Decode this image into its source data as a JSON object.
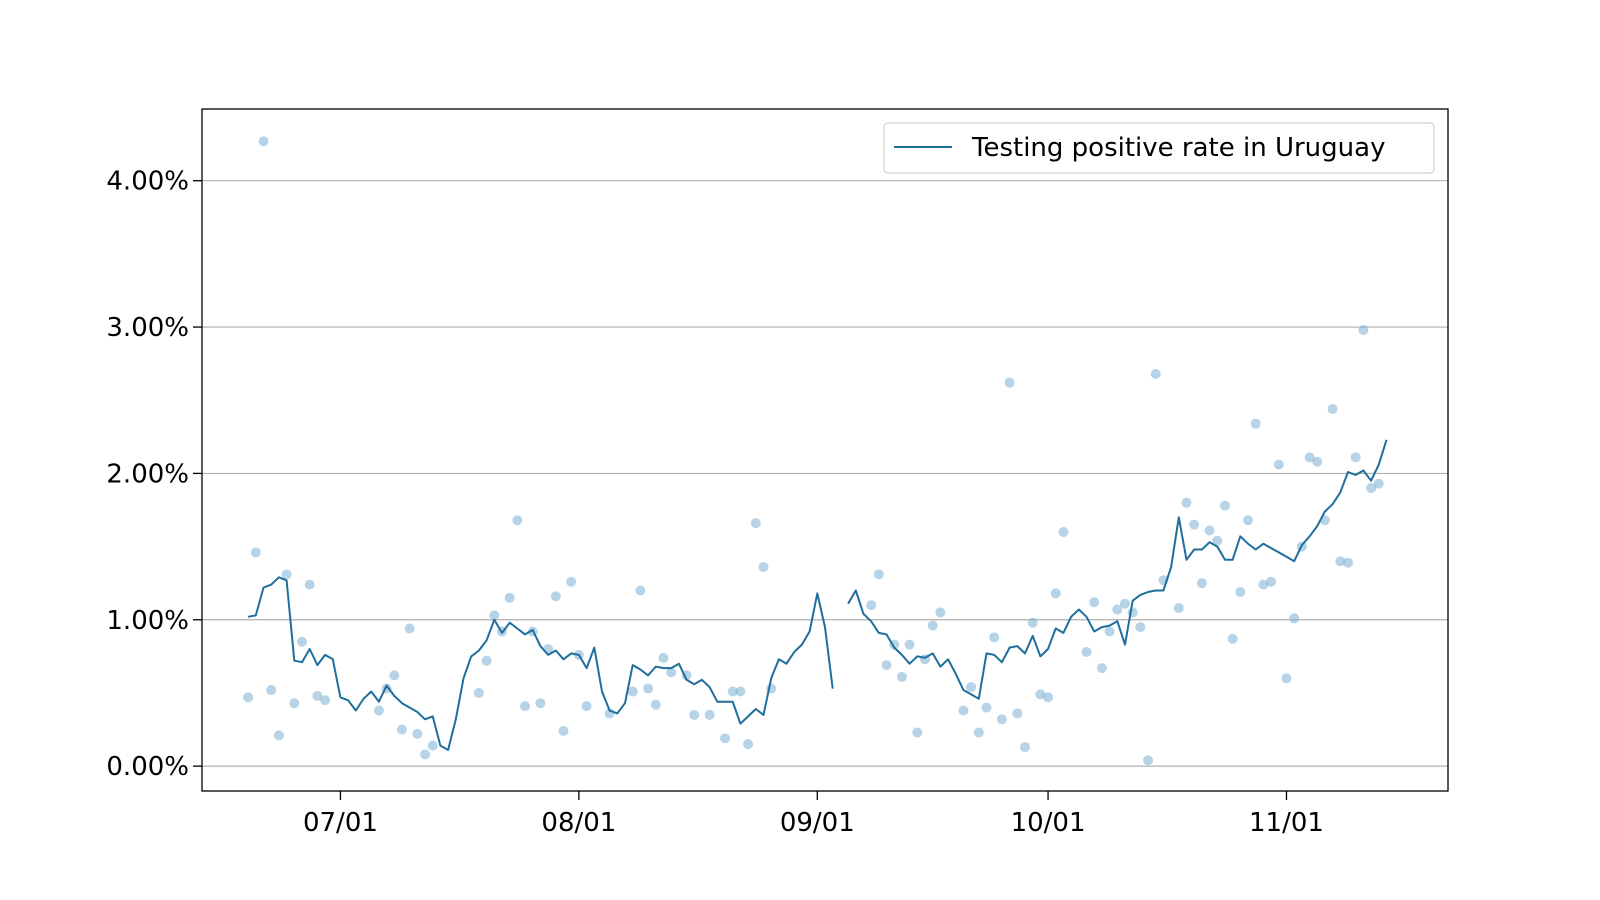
{
  "chart_data": {
    "type": "line",
    "title": "",
    "xlabel": "",
    "ylabel": "",
    "x_axis": {
      "type": "date",
      "range": [
        "2020-06-13",
        "2020-11-22"
      ],
      "ticks": [
        {
          "date": "2020-07-01",
          "label": "07/01"
        },
        {
          "date": "2020-08-01",
          "label": "08/01"
        },
        {
          "date": "2020-09-01",
          "label": "09/01"
        },
        {
          "date": "2020-10-01",
          "label": "10/01"
        },
        {
          "date": "2020-11-01",
          "label": "11/01"
        }
      ]
    },
    "y_axis": {
      "range": [
        -0.0017,
        0.0449
      ],
      "format": "percent",
      "grid": true,
      "ticks": [
        {
          "value": 0.0,
          "label": "0.00%"
        },
        {
          "value": 0.01,
          "label": "1.00%"
        },
        {
          "value": 0.02,
          "label": "2.00%"
        },
        {
          "value": 0.03,
          "label": "3.00%"
        },
        {
          "value": 0.04,
          "label": "4.00%"
        }
      ]
    },
    "legend": {
      "position": "top-right"
    },
    "colors": {
      "line": "#1f6e9c",
      "points": "#7aaed3",
      "grid": "#b0b0b0",
      "axis": "#000000"
    },
    "series": [
      {
        "name": "Testing positive rate in Uruguay",
        "kind": "line",
        "points": [
          [
            "2020-06-19",
            0.0102
          ],
          [
            "2020-06-20",
            0.0103
          ],
          [
            "2020-06-21",
            0.0122
          ],
          [
            "2020-06-22",
            0.0124
          ],
          [
            "2020-06-23",
            0.0129
          ],
          [
            "2020-06-24",
            0.0127
          ],
          [
            "2020-06-25",
            0.0072
          ],
          [
            "2020-06-26",
            0.0071
          ],
          [
            "2020-06-27",
            0.008
          ],
          [
            "2020-06-28",
            0.0069
          ],
          [
            "2020-06-29",
            0.0076
          ],
          [
            "2020-06-30",
            0.0073
          ],
          [
            "2020-07-01",
            0.0047
          ],
          [
            "2020-07-02",
            0.0045
          ],
          [
            "2020-07-03",
            0.0038
          ],
          [
            "2020-07-04",
            0.0046
          ],
          [
            "2020-07-05",
            0.0051
          ],
          [
            "2020-07-06",
            0.0044
          ],
          [
            "2020-07-07",
            0.0055
          ],
          [
            "2020-07-08",
            0.0048
          ],
          [
            "2020-07-09",
            0.0043
          ],
          [
            "2020-07-10",
            0.004
          ],
          [
            "2020-07-11",
            0.0037
          ],
          [
            "2020-07-12",
            0.0032
          ],
          [
            "2020-07-13",
            0.0034
          ],
          [
            "2020-07-14",
            0.0014
          ],
          [
            "2020-07-15",
            0.0011
          ],
          [
            "2020-07-16",
            0.0032
          ],
          [
            "2020-07-17",
            0.006
          ],
          [
            "2020-07-18",
            0.0075
          ],
          [
            "2020-07-19",
            0.0079
          ],
          [
            "2020-07-20",
            0.0086
          ],
          [
            "2020-07-21",
            0.01
          ],
          [
            "2020-07-22",
            0.0091
          ],
          [
            "2020-07-23",
            0.0098
          ],
          [
            "2020-07-24",
            0.0094
          ],
          [
            "2020-07-25",
            0.009
          ],
          [
            "2020-07-26",
            0.0093
          ],
          [
            "2020-07-27",
            0.0082
          ],
          [
            "2020-07-28",
            0.0076
          ],
          [
            "2020-07-29",
            0.0079
          ],
          [
            "2020-07-30",
            0.0073
          ],
          [
            "2020-07-31",
            0.0077
          ],
          [
            "2020-08-01",
            0.0076
          ],
          [
            "2020-08-02",
            0.0067
          ],
          [
            "2020-08-03",
            0.0081
          ],
          [
            "2020-08-04",
            0.0051
          ],
          [
            "2020-08-05",
            0.0038
          ],
          [
            "2020-08-06",
            0.0036
          ],
          [
            "2020-08-07",
            0.0043
          ],
          [
            "2020-08-08",
            0.0069
          ],
          [
            "2020-08-09",
            0.0066
          ],
          [
            "2020-08-10",
            0.0062
          ],
          [
            "2020-08-11",
            0.0068
          ],
          [
            "2020-08-12",
            0.0067
          ],
          [
            "2020-08-13",
            0.0067
          ],
          [
            "2020-08-14",
            0.007
          ],
          [
            "2020-08-15",
            0.0059
          ],
          [
            "2020-08-16",
            0.0056
          ],
          [
            "2020-08-17",
            0.0059
          ],
          [
            "2020-08-18",
            0.0054
          ],
          [
            "2020-08-19",
            0.0044
          ],
          [
            "2020-08-20",
            0.0044
          ],
          [
            "2020-08-21",
            0.0044
          ],
          [
            "2020-08-22",
            0.0029
          ],
          [
            "2020-08-23",
            0.0034
          ],
          [
            "2020-08-24",
            0.0039
          ],
          [
            "2020-08-25",
            0.0035
          ],
          [
            "2020-08-26",
            0.006
          ],
          [
            "2020-08-27",
            0.0073
          ],
          [
            "2020-08-28",
            0.007
          ],
          [
            "2020-08-29",
            0.0078
          ],
          [
            "2020-08-30",
            0.0083
          ],
          [
            "2020-08-31",
            0.0092
          ],
          [
            "2020-09-01",
            0.0118
          ],
          [
            "2020-09-02",
            0.0095
          ],
          [
            "2020-09-03",
            0.0053
          ],
          [
            "2020-09-04",
            null
          ],
          [
            "2020-09-05",
            0.0111
          ],
          [
            "2020-09-06",
            0.012
          ],
          [
            "2020-09-07",
            0.0104
          ],
          [
            "2020-09-08",
            0.0099
          ],
          [
            "2020-09-09",
            0.0091
          ],
          [
            "2020-09-10",
            0.009
          ],
          [
            "2020-09-11",
            0.0081
          ],
          [
            "2020-09-12",
            0.0076
          ],
          [
            "2020-09-13",
            0.007
          ],
          [
            "2020-09-14",
            0.0075
          ],
          [
            "2020-09-15",
            0.0074
          ],
          [
            "2020-09-16",
            0.0077
          ],
          [
            "2020-09-17",
            0.0068
          ],
          [
            "2020-09-18",
            0.0073
          ],
          [
            "2020-09-19",
            0.0063
          ],
          [
            "2020-09-20",
            0.0052
          ],
          [
            "2020-09-21",
            0.0049
          ],
          [
            "2020-09-22",
            0.0046
          ],
          [
            "2020-09-23",
            0.0077
          ],
          [
            "2020-09-24",
            0.0076
          ],
          [
            "2020-09-25",
            0.0071
          ],
          [
            "2020-09-26",
            0.0081
          ],
          [
            "2020-09-27",
            0.0082
          ],
          [
            "2020-09-28",
            0.0077
          ],
          [
            "2020-09-29",
            0.0089
          ],
          [
            "2020-09-30",
            0.0075
          ],
          [
            "2020-10-01",
            0.008
          ],
          [
            "2020-10-02",
            0.0094
          ],
          [
            "2020-10-03",
            0.0091
          ],
          [
            "2020-10-04",
            0.0102
          ],
          [
            "2020-10-05",
            0.0107
          ],
          [
            "2020-10-06",
            0.0102
          ],
          [
            "2020-10-07",
            0.0092
          ],
          [
            "2020-10-08",
            0.0095
          ],
          [
            "2020-10-09",
            0.0096
          ],
          [
            "2020-10-10",
            0.0099
          ],
          [
            "2020-10-11",
            0.0083
          ],
          [
            "2020-10-12",
            0.0113
          ],
          [
            "2020-10-13",
            0.0117
          ],
          [
            "2020-10-14",
            0.0119
          ],
          [
            "2020-10-15",
            0.012
          ],
          [
            "2020-10-16",
            0.012
          ],
          [
            "2020-10-17",
            0.0136
          ],
          [
            "2020-10-18",
            0.017
          ],
          [
            "2020-10-19",
            0.0141
          ],
          [
            "2020-10-20",
            0.0148
          ],
          [
            "2020-10-21",
            0.0148
          ],
          [
            "2020-10-22",
            0.0153
          ],
          [
            "2020-10-23",
            0.015
          ],
          [
            "2020-10-24",
            0.0141
          ],
          [
            "2020-10-25",
            0.0141
          ],
          [
            "2020-10-26",
            0.0157
          ],
          [
            "2020-10-27",
            0.0152
          ],
          [
            "2020-10-28",
            0.0148
          ],
          [
            "2020-10-29",
            0.0152
          ],
          [
            "2020-10-30",
            0.0149
          ],
          [
            "2020-10-31",
            0.0146
          ],
          [
            "2020-11-01",
            0.0143
          ],
          [
            "2020-11-02",
            0.014
          ],
          [
            "2020-11-03",
            0.0151
          ],
          [
            "2020-11-04",
            0.0157
          ],
          [
            "2020-11-05",
            0.0164
          ],
          [
            "2020-11-06",
            0.0174
          ],
          [
            "2020-11-07",
            0.0179
          ],
          [
            "2020-11-08",
            0.0187
          ],
          [
            "2020-11-09",
            0.0201
          ],
          [
            "2020-11-10",
            0.0199
          ],
          [
            "2020-11-11",
            0.0202
          ],
          [
            "2020-11-12",
            0.0195
          ],
          [
            "2020-11-13",
            0.0206
          ],
          [
            "2020-11-14",
            0.0223
          ]
        ]
      },
      {
        "kind": "scatter",
        "points": [
          [
            "2020-06-19",
            0.0047
          ],
          [
            "2020-06-20",
            0.0146
          ],
          [
            "2020-06-21",
            0.0427
          ],
          [
            "2020-06-22",
            0.0052
          ],
          [
            "2020-06-23",
            0.0021
          ],
          [
            "2020-06-24",
            0.0131
          ],
          [
            "2020-06-25",
            0.0043
          ],
          [
            "2020-06-26",
            0.0085
          ],
          [
            "2020-06-27",
            0.0124
          ],
          [
            "2020-06-28",
            0.0048
          ],
          [
            "2020-06-29",
            0.0045
          ],
          [
            "2020-07-06",
            0.0038
          ],
          [
            "2020-07-07",
            0.0053
          ],
          [
            "2020-07-08",
            0.0062
          ],
          [
            "2020-07-09",
            0.0025
          ],
          [
            "2020-07-10",
            0.0094
          ],
          [
            "2020-07-11",
            0.0022
          ],
          [
            "2020-07-12",
            0.0008
          ],
          [
            "2020-07-13",
            0.0014
          ],
          [
            "2020-07-19",
            0.005
          ],
          [
            "2020-07-20",
            0.0072
          ],
          [
            "2020-07-21",
            0.0103
          ],
          [
            "2020-07-22",
            0.0092
          ],
          [
            "2020-07-23",
            0.0115
          ],
          [
            "2020-07-24",
            0.0168
          ],
          [
            "2020-07-25",
            0.0041
          ],
          [
            "2020-07-26",
            0.0092
          ],
          [
            "2020-07-27",
            0.0043
          ],
          [
            "2020-07-28",
            0.008
          ],
          [
            "2020-07-29",
            0.0116
          ],
          [
            "2020-07-30",
            0.0024
          ],
          [
            "2020-07-31",
            0.0126
          ],
          [
            "2020-08-01",
            0.0076
          ],
          [
            "2020-08-02",
            0.0041
          ],
          [
            "2020-08-05",
            0.0036
          ],
          [
            "2020-08-08",
            0.0051
          ],
          [
            "2020-08-09",
            0.012
          ],
          [
            "2020-08-10",
            0.0053
          ],
          [
            "2020-08-11",
            0.0042
          ],
          [
            "2020-08-12",
            0.0074
          ],
          [
            "2020-08-13",
            0.0064
          ],
          [
            "2020-08-15",
            0.0062
          ],
          [
            "2020-08-16",
            0.0035
          ],
          [
            "2020-08-18",
            0.0035
          ],
          [
            "2020-08-20",
            0.0019
          ],
          [
            "2020-08-21",
            0.0051
          ],
          [
            "2020-08-22",
            0.0051
          ],
          [
            "2020-08-23",
            0.0015
          ],
          [
            "2020-08-24",
            0.0166
          ],
          [
            "2020-08-25",
            0.0136
          ],
          [
            "2020-08-26",
            0.0053
          ],
          [
            "2020-09-08",
            0.011
          ],
          [
            "2020-09-09",
            0.0131
          ],
          [
            "2020-09-10",
            0.0069
          ],
          [
            "2020-09-11",
            0.0083
          ],
          [
            "2020-09-12",
            0.0061
          ],
          [
            "2020-09-13",
            0.0083
          ],
          [
            "2020-09-14",
            0.0023
          ],
          [
            "2020-09-15",
            0.0073
          ],
          [
            "2020-09-16",
            0.0096
          ],
          [
            "2020-09-17",
            0.0105
          ],
          [
            "2020-09-20",
            0.0038
          ],
          [
            "2020-09-21",
            0.0054
          ],
          [
            "2020-09-22",
            0.0023
          ],
          [
            "2020-09-23",
            0.004
          ],
          [
            "2020-09-24",
            0.0088
          ],
          [
            "2020-09-25",
            0.0032
          ],
          [
            "2020-09-26",
            0.0262
          ],
          [
            "2020-09-27",
            0.0036
          ],
          [
            "2020-09-28",
            0.0013
          ],
          [
            "2020-09-29",
            0.0098
          ],
          [
            "2020-09-30",
            0.0049
          ],
          [
            "2020-10-01",
            0.0047
          ],
          [
            "2020-10-02",
            0.0118
          ],
          [
            "2020-10-03",
            0.016
          ],
          [
            "2020-10-06",
            0.0078
          ],
          [
            "2020-10-07",
            0.0112
          ],
          [
            "2020-10-08",
            0.0067
          ],
          [
            "2020-10-09",
            0.0092
          ],
          [
            "2020-10-10",
            0.0107
          ],
          [
            "2020-10-11",
            0.0111
          ],
          [
            "2020-10-12",
            0.0105
          ],
          [
            "2020-10-13",
            0.0095
          ],
          [
            "2020-10-14",
            0.0004
          ],
          [
            "2020-10-15",
            0.0268
          ],
          [
            "2020-10-16",
            0.0127
          ],
          [
            "2020-10-18",
            0.0108
          ],
          [
            "2020-10-19",
            0.018
          ],
          [
            "2020-10-20",
            0.0165
          ],
          [
            "2020-10-21",
            0.0125
          ],
          [
            "2020-10-22",
            0.0161
          ],
          [
            "2020-10-23",
            0.0154
          ],
          [
            "2020-10-24",
            0.0178
          ],
          [
            "2020-10-25",
            0.0087
          ],
          [
            "2020-10-26",
            0.0119
          ],
          [
            "2020-10-27",
            0.0168
          ],
          [
            "2020-10-28",
            0.0234
          ],
          [
            "2020-10-29",
            0.0124
          ],
          [
            "2020-10-30",
            0.0126
          ],
          [
            "2020-10-31",
            0.0206
          ],
          [
            "2020-11-01",
            0.006
          ],
          [
            "2020-11-02",
            0.0101
          ],
          [
            "2020-11-03",
            0.015
          ],
          [
            "2020-11-04",
            0.0211
          ],
          [
            "2020-11-05",
            0.0208
          ],
          [
            "2020-11-06",
            0.0168
          ],
          [
            "2020-11-07",
            0.0244
          ],
          [
            "2020-11-08",
            0.014
          ],
          [
            "2020-11-09",
            0.0139
          ],
          [
            "2020-11-10",
            0.0211
          ],
          [
            "2020-11-11",
            0.0298
          ],
          [
            "2020-11-12",
            0.019
          ],
          [
            "2020-11-13",
            0.0193
          ]
        ]
      }
    ]
  }
}
